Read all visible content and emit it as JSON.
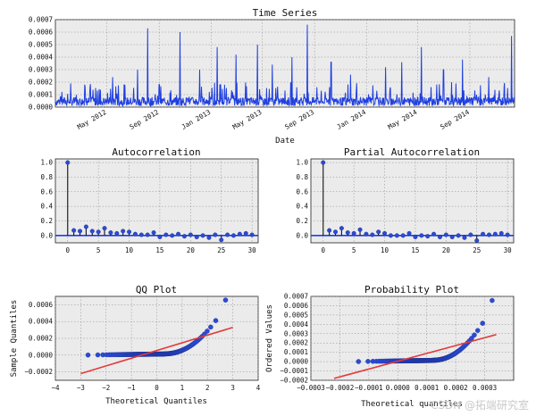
{
  "watermark": "CSDN @拓端研究室",
  "colors": {
    "series": "#1f3fe0",
    "stem": "#111111",
    "marker": "#2a4bd7",
    "fit": "#e23b3b",
    "axes_bg": "#ebebeb",
    "grid": "#8a8a8a"
  },
  "chart_data": [
    {
      "type": "line",
      "title": "Time Series",
      "xlabel": "Date",
      "ylabel": "",
      "x_ticks": [
        "May 2012",
        "Sep 2012",
        "Jan 2013",
        "May 2013",
        "Sep 2013",
        "Jan 2014",
        "May 2014",
        "Sep 2014"
      ],
      "y_ticks": [
        "0.0000",
        "0.0001",
        "0.0002",
        "0.0003",
        "0.0004",
        "0.0005",
        "0.0006",
        "0.0007"
      ],
      "ylim": [
        0,
        0.0007
      ],
      "x_range": [
        "2012-01-01",
        "2014-12-15"
      ],
      "spikes": [
        {
          "date": "2012-03-10",
          "value": 0.00018
        },
        {
          "date": "2012-05-15",
          "value": 0.00024
        },
        {
          "date": "2012-07-12",
          "value": 0.0003
        },
        {
          "date": "2012-08-05",
          "value": 0.00063
        },
        {
          "date": "2012-09-01",
          "value": 0.00018
        },
        {
          "date": "2012-10-20",
          "value": 0.0006
        },
        {
          "date": "2012-12-05",
          "value": 0.0003
        },
        {
          "date": "2013-01-15",
          "value": 0.00048
        },
        {
          "date": "2013-02-28",
          "value": 0.00042
        },
        {
          "date": "2013-04-20",
          "value": 0.0005
        },
        {
          "date": "2013-05-25",
          "value": 0.00034
        },
        {
          "date": "2013-07-10",
          "value": 0.0004
        },
        {
          "date": "2013-08-15",
          "value": 0.00066
        },
        {
          "date": "2013-10-10",
          "value": 0.00036
        },
        {
          "date": "2013-11-25",
          "value": 0.00026
        },
        {
          "date": "2014-02-15",
          "value": 0.00032
        },
        {
          "date": "2014-03-25",
          "value": 0.00036
        },
        {
          "date": "2014-05-10",
          "value": 0.00048
        },
        {
          "date": "2014-07-01",
          "value": 0.0003
        },
        {
          "date": "2014-08-15",
          "value": 0.00038
        },
        {
          "date": "2014-10-15",
          "value": 0.00024
        },
        {
          "date": "2014-12-08",
          "value": 0.00057
        }
      ],
      "base_level": 5e-05
    },
    {
      "type": "stem",
      "title": "Autocorrelation",
      "xlim": [
        -2,
        31
      ],
      "ylim": [
        -0.1,
        1.05
      ],
      "x_ticks": [
        "0",
        "5",
        "10",
        "15",
        "20",
        "25",
        "30"
      ],
      "y_ticks": [
        "0.0",
        "0.2",
        "0.4",
        "0.6",
        "0.8",
        "1.0"
      ],
      "lags": [
        0,
        1,
        2,
        3,
        4,
        5,
        6,
        7,
        8,
        9,
        10,
        11,
        12,
        13,
        14,
        15,
        16,
        17,
        18,
        19,
        20,
        21,
        22,
        23,
        24,
        25,
        26,
        27,
        28,
        29,
        30
      ],
      "values": [
        1.0,
        0.07,
        0.06,
        0.12,
        0.06,
        0.05,
        0.1,
        0.04,
        0.03,
        0.06,
        0.05,
        0.02,
        0.01,
        0.01,
        0.04,
        -0.02,
        0.01,
        0.0,
        0.02,
        -0.01,
        0.01,
        -0.02,
        0.0,
        -0.03,
        0.01,
        -0.06,
        0.01,
        0.0,
        0.02,
        0.03,
        0.01
      ]
    },
    {
      "type": "stem",
      "title": "Partial Autocorrelation",
      "xlim": [
        -2,
        31
      ],
      "ylim": [
        -0.1,
        1.05
      ],
      "x_ticks": [
        "0",
        "5",
        "10",
        "15",
        "20",
        "25",
        "30"
      ],
      "y_ticks": [
        "0.0",
        "0.2",
        "0.4",
        "0.6",
        "0.8",
        "1.0"
      ],
      "lags": [
        0,
        1,
        2,
        3,
        4,
        5,
        6,
        7,
        8,
        9,
        10,
        11,
        12,
        13,
        14,
        15,
        16,
        17,
        18,
        19,
        20,
        21,
        22,
        23,
        24,
        25,
        26,
        27,
        28,
        29,
        30
      ],
      "values": [
        1.0,
        0.07,
        0.05,
        0.1,
        0.04,
        0.03,
        0.08,
        0.02,
        0.01,
        0.05,
        0.03,
        0.0,
        0.0,
        0.0,
        0.03,
        -0.02,
        0.0,
        -0.01,
        0.02,
        -0.02,
        0.01,
        -0.02,
        0.0,
        -0.03,
        0.01,
        -0.07,
        0.02,
        0.01,
        0.02,
        0.03,
        0.01
      ]
    },
    {
      "type": "scatter",
      "title": "QQ Plot",
      "xlabel": "Theoretical Quantiles",
      "ylabel": "Sample Quantiles",
      "xlim": [
        -4,
        4
      ],
      "ylim": [
        -0.0003,
        0.0007
      ],
      "x_ticks": [
        "−4",
        "−3",
        "−2",
        "−1",
        "0",
        "1",
        "2",
        "3",
        "4"
      ],
      "y_ticks": [
        "−0.0002",
        "0.0000",
        "0.0002",
        "0.0004",
        "0.0006"
      ],
      "y_tick_values": [
        -0.0002,
        0,
        0.0002,
        0.0004,
        0.0006
      ],
      "fit_line": {
        "x": [
          -3.0,
          3.0
        ],
        "y": [
          -0.00022,
          0.00033
        ]
      },
      "x_range": [
        -3.0,
        3.0
      ]
    },
    {
      "type": "scatter",
      "title": "Probability Plot",
      "xlabel": "Theoretical quantiles",
      "ylabel": "Ordered Values",
      "xlim": [
        -0.0003,
        0.0004
      ],
      "ylim": [
        -0.0002,
        0.0007
      ],
      "x_ticks": [
        "−0.0003",
        "−0.0002",
        "−0.0001",
        "0.0000",
        "0.0001",
        "0.0002",
        "0.0003"
      ],
      "x_tick_values": [
        -0.0003,
        -0.0002,
        -0.0001,
        0,
        0.0001,
        0.0002,
        0.0003
      ],
      "y_ticks": [
        "−0.0002",
        "−0.0001",
        "0.0000",
        "0.0001",
        "0.0002",
        "0.0003",
        "0.0004",
        "0.0005",
        "0.0006",
        "0.0007"
      ],
      "y_tick_values": [
        -0.0002,
        -0.0001,
        0,
        0.0001,
        0.0002,
        0.0003,
        0.0004,
        0.0005,
        0.0006,
        0.0007
      ],
      "fit_line": {
        "x": [
          -0.00022,
          0.00034
        ],
        "y": [
          -0.00018,
          0.00029
        ]
      },
      "x_range": [
        -0.00016,
        0.00035
      ]
    }
  ]
}
